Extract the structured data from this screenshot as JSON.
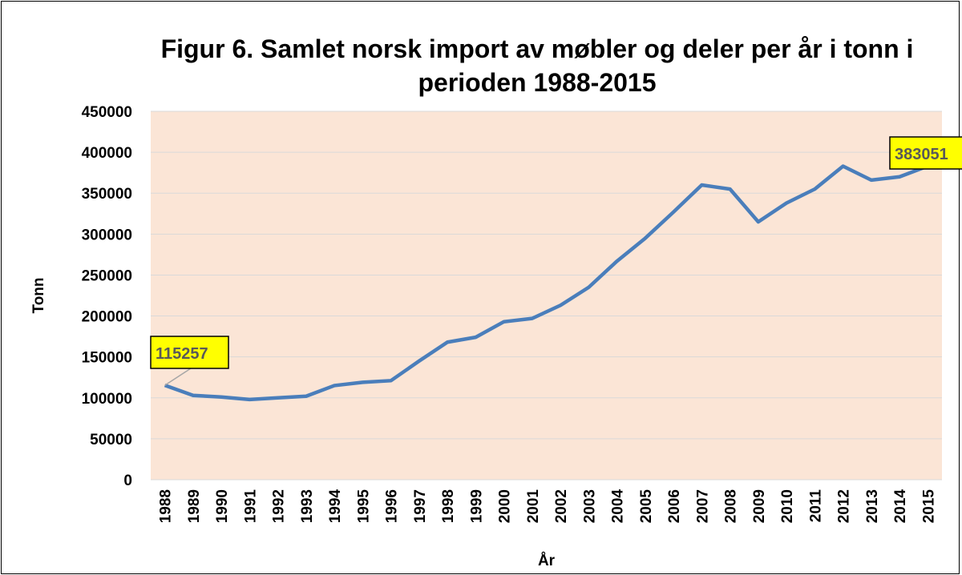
{
  "chart_data": {
    "type": "line",
    "title": "Figur 6. Samlet norsk import av møbler og deler per år i tonn i perioden 1988-2015",
    "x_label": "År",
    "y_label": "Tonn",
    "categories": [
      "1988",
      "1989",
      "1990",
      "1991",
      "1992",
      "1993",
      "1994",
      "1995",
      "1996",
      "1997",
      "1998",
      "1999",
      "2000",
      "2001",
      "2002",
      "2003",
      "2004",
      "2005",
      "2006",
      "2007",
      "2008",
      "2009",
      "2010",
      "2011",
      "2012",
      "2013",
      "2014",
      "2015"
    ],
    "series": [
      {
        "name": "Tonn",
        "color": "#4a7ebb",
        "values": [
          115257,
          103000,
          101000,
          98000,
          100000,
          102000,
          115000,
          119000,
          121000,
          145000,
          168000,
          174000,
          193000,
          197000,
          213000,
          235000,
          267000,
          295000,
          327000,
          360000,
          355000,
          315000,
          338000,
          355000,
          383000,
          366000,
          370000,
          383051
        ]
      }
    ],
    "labeled_points": [
      0,
      27
    ],
    "ylim": [
      0,
      450000
    ],
    "yticks": [
      0,
      50000,
      100000,
      150000,
      200000,
      250000,
      300000,
      350000,
      400000,
      450000
    ],
    "grid": true,
    "plot_background": "#fbe5d6",
    "label_background": "#ffff00"
  }
}
